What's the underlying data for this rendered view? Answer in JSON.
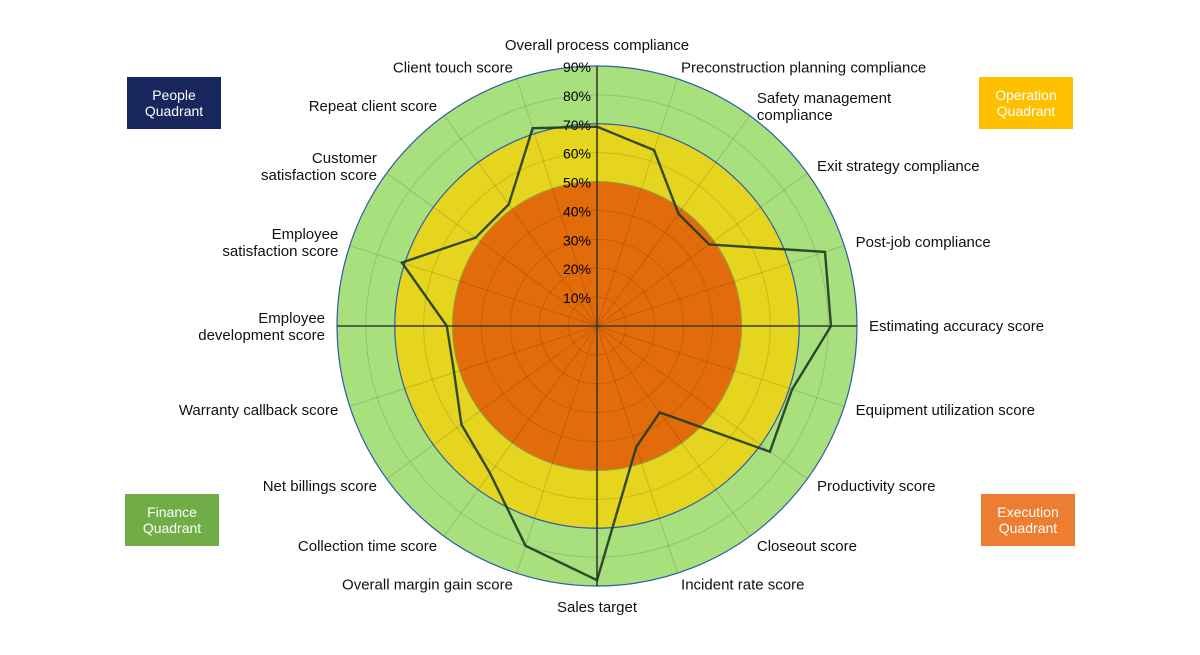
{
  "quadrant_boxes": [
    {
      "id": "people",
      "label": "People\nQuadrant",
      "color": "#17275e"
    },
    {
      "id": "operation",
      "label": "Operation\nQuadrant",
      "color": "#ffc000"
    },
    {
      "id": "finance",
      "label": "Finance\nQuadrant",
      "color": "#70ad47"
    },
    {
      "id": "execution",
      "label": "Execution\nQuadrant",
      "color": "#ed7d31"
    }
  ],
  "chart_data": {
    "type": "radar",
    "title": "",
    "categories": [
      "Overall process compliance",
      "Preconstruction planning compliance",
      "Safety management compliance",
      "Exit strategy compliance",
      "Post-job compliance",
      "Estimating accuracy score",
      "Equipment utilization score",
      "Productivity score",
      "Closeout score",
      "Incident rate score",
      "Sales target",
      "Overall margin gain score",
      "Collection time score",
      "Net billings score",
      "Warranty callback score",
      "Employee development score",
      "Employee satisfaction score",
      "Customer satisfaction score",
      "Repeat client score",
      "Client touch score"
    ],
    "radial_ticks": [
      "10%",
      "20%",
      "30%",
      "40%",
      "50%",
      "60%",
      "70%",
      "80%",
      "90%"
    ],
    "rmax": 90,
    "bands": [
      {
        "from": 0,
        "to": 50,
        "color": "#e36c0a"
      },
      {
        "from": 50,
        "to": 70,
        "color": "#e5d51f"
      },
      {
        "from": 70,
        "to": 90,
        "color": "#a8e07e"
      }
    ],
    "band_edge_colors": {
      "50": "#9a9a3a",
      "70": "#2f5aa8",
      "90": "#2f5aa8"
    },
    "series": [
      {
        "values": [
          69,
          64,
          48,
          48,
          83,
          81,
          71,
          74,
          37,
          44,
          88,
          80,
          63,
          58,
          52,
          52,
          71,
          52,
          52,
          72
        ],
        "color": "#1f3a1f"
      }
    ],
    "grid": true,
    "axis_lines": "horizontal and vertical through center"
  }
}
